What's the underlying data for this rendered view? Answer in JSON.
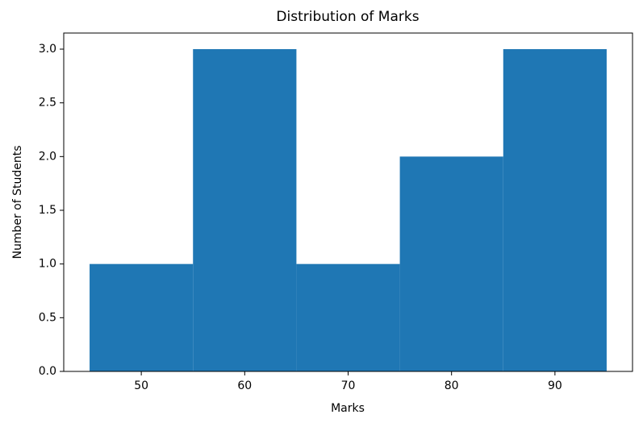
{
  "chart_data": {
    "type": "histogram",
    "title": "Distribution of Marks",
    "x_label": "Marks",
    "y_label": "Number of Students",
    "bins": [
      45,
      55,
      65,
      75,
      85,
      95
    ],
    "values": [
      1,
      3,
      1,
      2,
      3
    ],
    "color": "#1f77b4",
    "xlim": [
      42.5,
      97.5
    ],
    "xticks": [
      50,
      60,
      70,
      80,
      90
    ],
    "ylim": [
      0,
      3.15
    ],
    "yticks": [
      {
        "value": 0,
        "label": "0.0"
      },
      {
        "value": 0.5,
        "label": "0.5"
      },
      {
        "value": 1,
        "label": "1.0"
      },
      {
        "value": 1.5,
        "label": "1.5"
      },
      {
        "value": 2,
        "label": "2.0"
      },
      {
        "value": 2.5,
        "label": "2.5"
      },
      {
        "value": 3,
        "label": "3.0"
      }
    ],
    "grid": false
  }
}
